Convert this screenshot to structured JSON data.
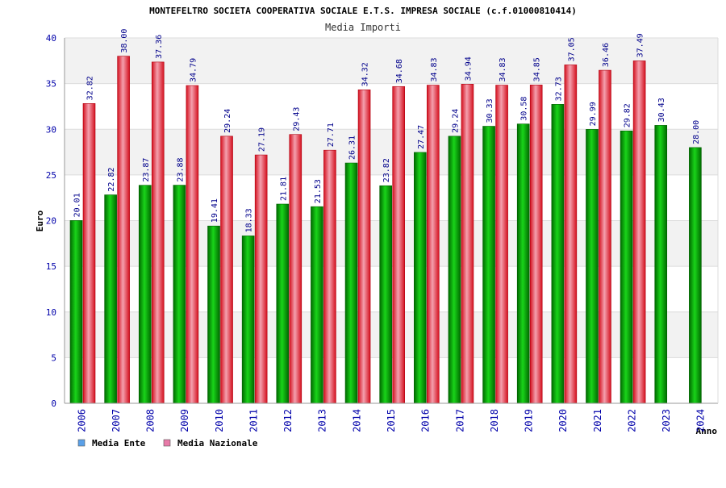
{
  "chart_data": {
    "type": "bar",
    "title": "MONTEFELTRO SOCIETA COOPERATIVA SOCIALE E.T.S. IMPRESA SOCIALE (c.f.01000810414)",
    "subtitle": "Media Importi",
    "xlabel": "Anno",
    "ylabel": "Euro",
    "ylim": [
      0,
      40
    ],
    "yticks": [
      "0",
      "5",
      "10",
      "15",
      "20",
      "25",
      "30",
      "35",
      "40"
    ],
    "grid": true,
    "legend_position": "bottom-left",
    "categories": [
      "2006",
      "2007",
      "2008",
      "2009",
      "2010",
      "2011",
      "2012",
      "2013",
      "2014",
      "2015",
      "2016",
      "2017",
      "2018",
      "2019",
      "2020",
      "2021",
      "2022",
      "2023",
      "2024"
    ],
    "series": [
      {
        "name": "Media Ente",
        "values": [
          20.01,
          22.82,
          23.87,
          23.88,
          19.41,
          18.33,
          21.81,
          21.53,
          26.31,
          23.82,
          27.47,
          29.24,
          30.33,
          30.58,
          32.73,
          29.99,
          29.82,
          30.43,
          28.0
        ],
        "labels": [
          "20.01",
          "22.82",
          "23.87",
          "23.88",
          "19.41",
          "18.33",
          "21.81",
          "21.53",
          "26.31",
          "23.82",
          "27.47",
          "29.24",
          "30.33",
          "30.58",
          "32.73",
          "29.99",
          "29.82",
          "30.43",
          "28.00"
        ],
        "color": "#00b000",
        "legend_color": "#5aa0e8"
      },
      {
        "name": "Media Nazionale",
        "values": [
          32.82,
          38.0,
          37.36,
          34.79,
          29.24,
          27.19,
          29.43,
          27.71,
          34.32,
          34.68,
          34.83,
          34.94,
          34.83,
          34.85,
          37.05,
          36.46,
          37.49,
          null,
          null
        ],
        "labels": [
          "32.82",
          "38.00",
          "37.36",
          "34.79",
          "29.24",
          "27.19",
          "29.43",
          "27.71",
          "34.32",
          "34.68",
          "34.83",
          "34.94",
          "34.83",
          "34.85",
          "37.05",
          "36.46",
          "37.49",
          "",
          ""
        ],
        "color": "#e01c2c",
        "legend_color": "#e87aa8"
      }
    ]
  }
}
